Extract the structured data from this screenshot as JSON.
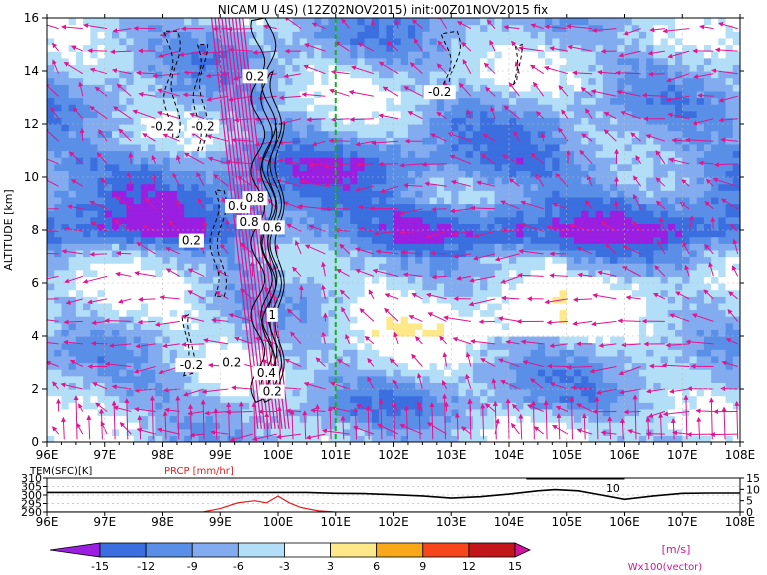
{
  "chart_data": [
    {
      "type": "heatmap",
      "title": "NICAM U (4S) (12Z02NOV2015) init:00Z01NOV2015 fix",
      "xlabel": "",
      "ylabel": "ALTITUDE [km]",
      "x_ticks": [
        "96E",
        "97E",
        "98E",
        "99E",
        "100E",
        "101E",
        "102E",
        "103E",
        "104E",
        "105E",
        "106E",
        "107E",
        "108E"
      ],
      "x_range": [
        96,
        108
      ],
      "y_ticks": [
        "0",
        "2",
        "4",
        "6",
        "8",
        "10",
        "12",
        "14",
        "16"
      ],
      "y_range": [
        0,
        16
      ],
      "grid": true,
      "marker_longitude": 101,
      "contour_labels": [
        {
          "text": "0.2",
          "x": 99.6,
          "y": 13.8
        },
        {
          "text": "-0.2",
          "x": 98.0,
          "y": 11.9
        },
        {
          "text": "-0.2",
          "x": 98.7,
          "y": 11.9
        },
        {
          "text": "-0.2",
          "x": 102.8,
          "y": 13.2
        },
        {
          "text": "0.6",
          "x": 99.3,
          "y": 8.9
        },
        {
          "text": "0.8",
          "x": 99.6,
          "y": 9.2
        },
        {
          "text": "0.8",
          "x": 99.5,
          "y": 8.3
        },
        {
          "text": "0.6",
          "x": 99.9,
          "y": 8.1
        },
        {
          "text": "0.2",
          "x": 98.5,
          "y": 7.6
        },
        {
          "text": "1",
          "x": 99.9,
          "y": 4.8
        },
        {
          "text": "-0.2",
          "x": 98.5,
          "y": 2.9
        },
        {
          "text": "0.2",
          "x": 99.2,
          "y": 3.0
        },
        {
          "text": "0.4",
          "x": 99.8,
          "y": 2.6
        },
        {
          "text": "0.2",
          "x": 99.9,
          "y": 1.9
        }
      ],
      "legend": {
        "ticks": [
          "-15",
          "-12",
          "-9",
          "-6",
          "-3",
          "3",
          "6",
          "9",
          "12",
          "15"
        ],
        "unit": "[m/s]",
        "colors": [
          "#9a1fe0",
          "#3b6fe0",
          "#5a8fe8",
          "#82acef",
          "#b2def8",
          "#ffffff",
          "#fde98a",
          "#f9a81a",
          "#f7471a",
          "#c3161b",
          "#d0159c"
        ],
        "vector_label": "Wx100(vector)"
      },
      "u_field_bands": [
        {
          "alt": 15.5,
          "value": -7
        },
        {
          "alt": 13.5,
          "value": -6
        },
        {
          "alt": 11.5,
          "value": -8
        },
        {
          "alt": 10.5,
          "value": -11
        },
        {
          "alt": 9.5,
          "value": -10
        },
        {
          "alt": 8.5,
          "value": -12
        },
        {
          "alt": 8.0,
          "value": -14
        },
        {
          "alt": 7.2,
          "value": -9
        },
        {
          "alt": 6.0,
          "value": -5
        },
        {
          "alt": 4.5,
          "value": -4
        },
        {
          "alt": 3.0,
          "value": -6
        },
        {
          "alt": 1.5,
          "value": -8
        },
        {
          "alt": 0.5,
          "value": -5
        }
      ]
    },
    {
      "type": "line",
      "title": "",
      "x_ticks": [
        "96E",
        "97E",
        "98E",
        "99E",
        "100E",
        "101E",
        "102E",
        "103E",
        "104E",
        "105E",
        "106E",
        "107E",
        "108E"
      ],
      "x_range": [
        96,
        108
      ],
      "left_label": "TEM(SFC)[K]",
      "right_label": "PRCP [mm/hr]",
      "left_ticks": [
        "310",
        "305",
        "300",
        "295",
        "290"
      ],
      "left_range": [
        290,
        310
      ],
      "right_ticks": [
        "15",
        "10",
        "5",
        "0"
      ],
      "right_range": [
        0,
        15
      ],
      "annotation": "10",
      "series": [
        {
          "name": "TEM(SFC)[K]",
          "color": "#000000",
          "x": [
            96,
            97,
            98,
            99,
            100,
            100.5,
            101,
            101.5,
            102,
            102.5,
            103,
            103.5,
            104,
            104.5,
            104.8,
            105.2,
            105.6,
            106,
            106.5,
            107,
            107.5,
            108
          ],
          "y": [
            301.5,
            301.5,
            301.5,
            301.5,
            301.5,
            301.5,
            301,
            300.8,
            300.2,
            299.5,
            298.2,
            299,
            300.5,
            302.5,
            303.2,
            302.5,
            300,
            297.5,
            299.5,
            301,
            301.2,
            301.2
          ]
        },
        {
          "name": "PRCP [mm/hr]",
          "color": "#e02020",
          "x": [
            96,
            98.7,
            99.0,
            99.3,
            99.6,
            99.8,
            100.0,
            100.2,
            100.4,
            100.7,
            101,
            108
          ],
          "y": [
            0,
            0,
            1.5,
            4,
            5,
            4,
            7,
            4,
            2,
            0.5,
            0,
            0
          ]
        }
      ]
    }
  ]
}
